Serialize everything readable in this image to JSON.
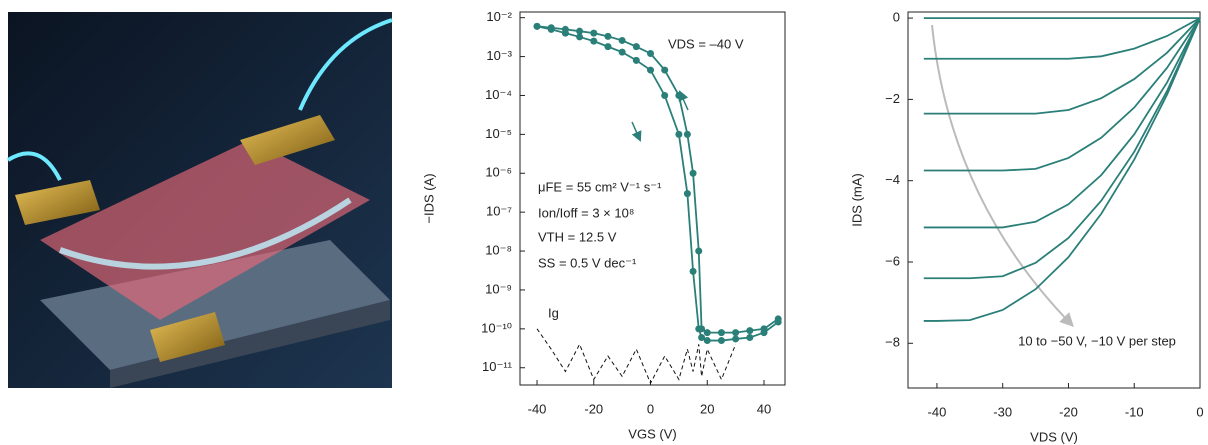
{
  "chart_data": [
    {
      "type": "line",
      "log_y": true,
      "x_label": "VGS (V)",
      "y_label": "−IDS (A)",
      "annotations": [
        "VDS = –40 V",
        "μFE = 55 cm² V⁻¹ s⁻¹",
        "Ion/Ioff = 3 × 10⁸",
        "VTH = 12.5 V",
        "SS = 0.5 V dec⁻¹",
        "Ig"
      ],
      "x": [
        -40,
        -35,
        -30,
        -25,
        -20,
        -15,
        -10,
        -5,
        0,
        5,
        10,
        13,
        15,
        17,
        18,
        20,
        25,
        30,
        35,
        40,
        45
      ],
      "series": [
        {
          "color": "#2a7f78",
          "markers": true,
          "values": [
            0.006,
            0.005,
            0.004,
            0.0032,
            0.0025,
            0.0018,
            0.0013,
            0.0008,
            0.00045,
            0.0001,
            1e-05,
            3e-07,
            3e-09,
            1e-10,
            6e-11,
            5e-11,
            5e-11,
            5.5e-11,
            6e-11,
            8e-11,
            1.5e-10
          ]
        },
        {
          "color": "#2a7f78",
          "markers": true,
          "values": [
            0.006,
            0.0055,
            0.005,
            0.0045,
            0.004,
            0.0033,
            0.0026,
            0.0018,
            0.0012,
            0.00045,
            0.0001,
            1e-05,
            1e-06,
            1e-08,
            1e-10,
            8e-11,
            8e-11,
            8e-11,
            9e-11,
            1e-10,
            1.8e-10
          ]
        },
        {
          "color": "#111111",
          "dash": true,
          "values": [
            1e-10,
            3e-11,
            8e-12,
            4e-11,
            5e-12,
            2e-11,
            6e-12,
            3e-11,
            4e-12,
            2e-11,
            5e-12,
            3e-11,
            8e-12,
            4e-11,
            6e-12,
            3e-11,
            5e-12,
            4e-11,
            null,
            null,
            null
          ]
        }
      ],
      "xlim": [
        -46,
        47.4
      ],
      "xticks": [
        -40,
        -20,
        0,
        20,
        40
      ],
      "ylim": [
        3.6e-12,
        0.014
      ],
      "yticks": [
        {
          "value": 1e-11,
          "label": "10⁻¹¹"
        },
        {
          "value": 1e-10,
          "label": "10⁻¹⁰"
        },
        {
          "value": 1e-09,
          "label": "10⁻⁹"
        },
        {
          "value": 1e-08,
          "label": "10⁻⁸"
        },
        {
          "value": 1e-07,
          "label": "10⁻⁷"
        },
        {
          "value": 1e-06,
          "label": "10⁻⁶"
        },
        {
          "value": 1e-05,
          "label": "10⁻⁵"
        },
        {
          "value": 0.0001,
          "label": "10⁻⁴"
        },
        {
          "value": 0.001,
          "label": "10⁻³"
        },
        {
          "value": 0.01,
          "label": "10⁻²"
        }
      ]
    },
    {
      "type": "line",
      "log_y": false,
      "x_label": "VDS (V)",
      "y_label": "IDS (mA)",
      "annotations": [
        "10 to −50 V, −10 V per step"
      ],
      "x": [
        -42,
        -40,
        -35,
        -30,
        -25,
        -20,
        -15,
        -10,
        -5,
        0
      ],
      "series": [
        {
          "color": "#2a7f78",
          "values": [
            0,
            0,
            0,
            0,
            0,
            0,
            0,
            0,
            0,
            0
          ]
        },
        {
          "color": "#2a7f78",
          "values": [
            -1,
            -1,
            -1,
            -1,
            -1,
            -1,
            -0.94,
            -0.75,
            -0.44,
            0
          ]
        },
        {
          "color": "#2a7f78",
          "values": [
            -2.35,
            -2.35,
            -2.35,
            -2.35,
            -2.35,
            -2.26,
            -1.97,
            -1.5,
            -0.85,
            0
          ]
        },
        {
          "color": "#2a7f78",
          "values": [
            -3.75,
            -3.75,
            -3.75,
            -3.75,
            -3.71,
            -3.44,
            -2.94,
            -2.2,
            -1.22,
            0
          ]
        },
        {
          "color": "#2a7f78",
          "values": [
            -5.15,
            -5.15,
            -5.15,
            -5.15,
            -5.01,
            -4.58,
            -3.86,
            -2.86,
            -1.58,
            0
          ]
        },
        {
          "color": "#2a7f78",
          "values": [
            -6.4,
            -6.4,
            -6.4,
            -6.35,
            -6.02,
            -5.41,
            -4.49,
            -3.29,
            -1.79,
            0
          ]
        },
        {
          "color": "#2a7f78",
          "values": [
            -7.45,
            -7.45,
            -7.43,
            -7.18,
            -6.67,
            -5.88,
            -4.81,
            -3.48,
            -1.88,
            0
          ]
        }
      ],
      "xlim": [
        -44.4,
        0
      ],
      "xticks": [
        -40,
        -30,
        -20,
        -10,
        0
      ],
      "ylim": [
        -9.1,
        0.15
      ],
      "yticks": [
        {
          "value": -8,
          "label": "−8"
        },
        {
          "value": -6,
          "label": "−6"
        },
        {
          "value": -4,
          "label": "−4"
        },
        {
          "value": -2,
          "label": "−2"
        },
        0
      ]
    }
  ]
}
